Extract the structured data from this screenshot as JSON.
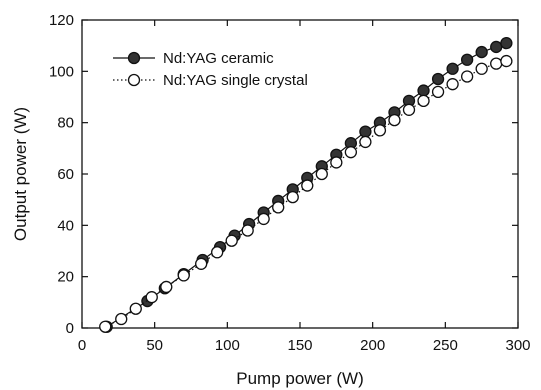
{
  "chart_data": {
    "type": "line",
    "title": "",
    "xlabel": "Pump power (W)",
    "ylabel": "Output power (W)",
    "xlim": [
      0,
      300
    ],
    "ylim": [
      0,
      120
    ],
    "xticks": [
      0,
      50,
      100,
      150,
      200,
      250,
      300
    ],
    "yticks": [
      0,
      20,
      40,
      60,
      80,
      100,
      120
    ],
    "grid": false,
    "legend_position": "top-left",
    "series": [
      {
        "name": "Nd:YAG ceramic",
        "marker": "filled-circle",
        "line": "solid",
        "color": "#111111",
        "x": [
          17,
          45,
          57,
          70,
          83,
          95,
          105,
          115,
          125,
          135,
          145,
          155,
          165,
          175,
          185,
          195,
          205,
          215,
          225,
          235,
          245,
          255,
          265,
          275,
          285,
          292
        ],
        "y": [
          0.5,
          10.5,
          15.5,
          21,
          26.5,
          31.5,
          36,
          40.5,
          45,
          49.5,
          54,
          58.5,
          63,
          67.5,
          72,
          76.5,
          80,
          84,
          88.5,
          92.5,
          97,
          101,
          104.5,
          107.5,
          109.5,
          111
        ]
      },
      {
        "name": "Nd:YAG single crystal",
        "marker": "open-circle",
        "line": "dotted",
        "color": "#111111",
        "x": [
          16,
          27,
          37,
          48,
          58,
          70,
          82,
          93,
          103,
          114,
          125,
          135,
          145,
          155,
          165,
          175,
          185,
          195,
          205,
          215,
          225,
          235,
          245,
          255,
          265,
          275,
          285,
          292
        ],
        "y": [
          0.5,
          3.5,
          7.5,
          12,
          16,
          20.5,
          25,
          29.5,
          34,
          38,
          42.5,
          47,
          51,
          55.5,
          60,
          64.5,
          68.5,
          72.5,
          77,
          81,
          85,
          88.5,
          92,
          95,
          98,
          101,
          103,
          104
        ]
      }
    ]
  }
}
